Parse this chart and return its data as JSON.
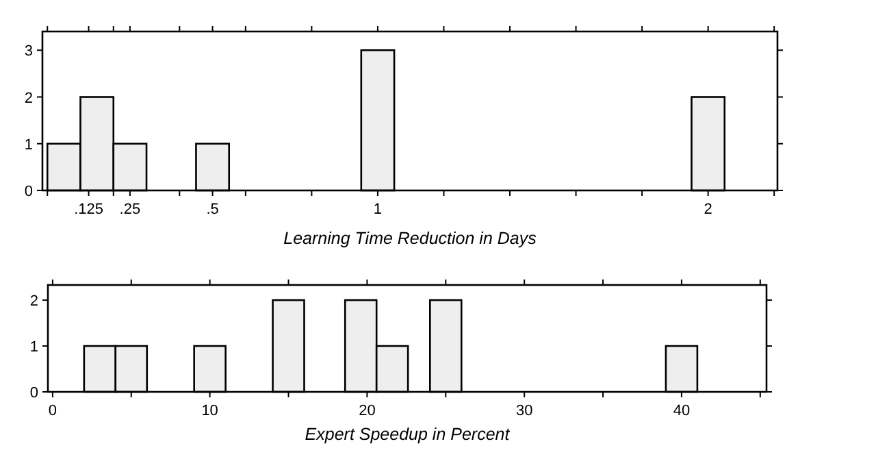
{
  "chart_data": [
    {
      "type": "histogram",
      "xlabel": "Learning Time Reduction in Days",
      "bins": [
        0,
        0.1,
        0.2,
        0.3,
        0.45,
        0.55,
        0.95,
        1.05,
        1.95,
        2.05
      ],
      "values": [
        1,
        2,
        1,
        0,
        1,
        0,
        3,
        0,
        2
      ],
      "color": "#eeeeee",
      "xlim": [
        -0.015,
        2.21
      ],
      "ylim": [
        0,
        3.4
      ],
      "yticks": [
        0,
        1,
        2,
        3
      ],
      "xticks": [
        {
          "value": 0,
          "label": null
        },
        {
          "value": 0.2,
          "label": null
        },
        {
          "value": 0.4,
          "label": null
        },
        {
          "value": 0.6,
          "label": null
        },
        {
          "value": 0.8,
          "label": null
        },
        {
          "value": 1.2,
          "label": null
        },
        {
          "value": 1.4,
          "label": null
        },
        {
          "value": 1.6,
          "label": null
        },
        {
          "value": 1.8,
          "label": null
        },
        {
          "value": 2.2,
          "label": null
        },
        {
          "value": 0.125,
          "label": ".125"
        },
        {
          "value": 0.25,
          "label": ".25"
        },
        {
          "value": 0.5,
          "label": ".5"
        },
        1,
        2
      ],
      "grid": false
    },
    {
      "type": "histogram",
      "xlabel": "Expert Speedup in Percent",
      "bins": [
        2,
        4,
        6,
        9,
        11,
        14,
        16,
        18.6,
        20.6,
        22.6,
        24,
        26,
        39,
        41
      ],
      "values": [
        1,
        1,
        0,
        1,
        0,
        2,
        0,
        2,
        1,
        0,
        2,
        0,
        1
      ],
      "color": "#eeeeee",
      "xlim": [
        -0.3,
        45.4
      ],
      "ylim": [
        0,
        2.33
      ],
      "yticks": [
        0,
        1,
        2
      ],
      "xticks": [
        0,
        {
          "value": 5,
          "label": null
        },
        10,
        {
          "value": 15,
          "label": null
        },
        20,
        {
          "value": 25,
          "label": null
        },
        30,
        {
          "value": 35,
          "label": null
        },
        40,
        {
          "value": 45,
          "label": null
        }
      ],
      "grid": false
    }
  ]
}
